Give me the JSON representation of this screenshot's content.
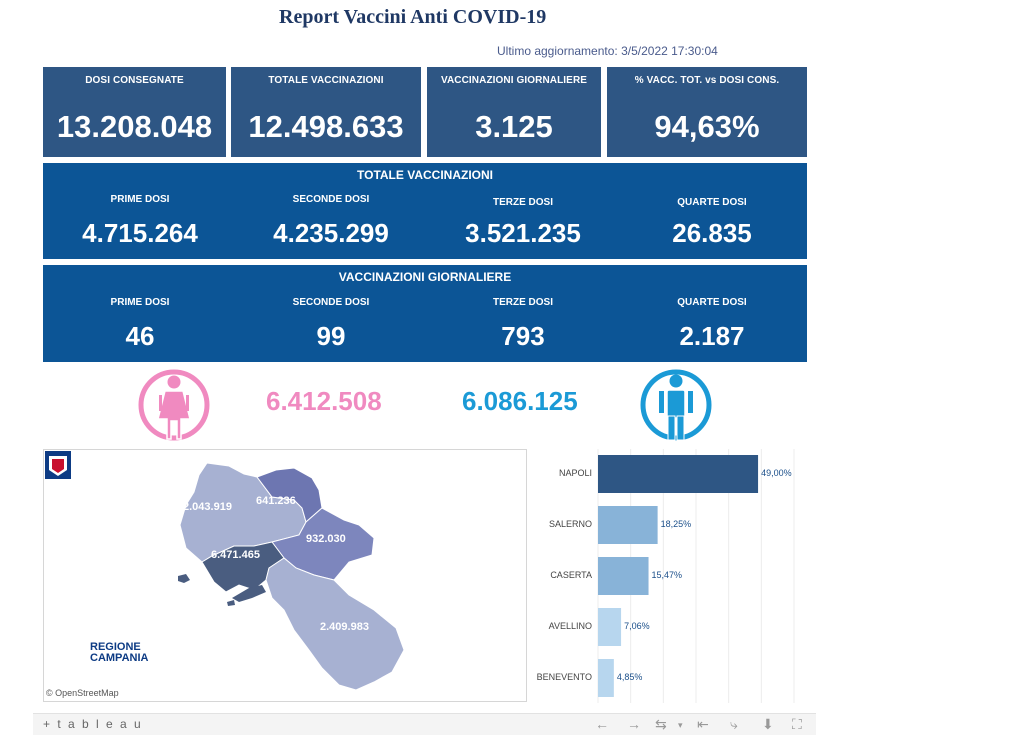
{
  "header": {
    "title": "Report Vaccini Anti COVID-19",
    "updated_label": "Ultimo aggiornamento:",
    "updated_value": "3/5/2022 17:30:04"
  },
  "kpis": [
    {
      "label": "DOSI  CONSEGNATE",
      "value": "13.208.048"
    },
    {
      "label": "TOTALE VACCINAZIONI",
      "value": "12.498.633"
    },
    {
      "label": "VACCINAZIONI GIORNALIERE",
      "value": "3.125"
    },
    {
      "label": "% VACC. TOT. vs DOSI CONS.",
      "value": "94,63%"
    }
  ],
  "totale": {
    "title": "TOTALE VACCINAZIONI",
    "items": [
      {
        "label": "PRIME DOSI",
        "value": "4.715.264"
      },
      {
        "label": "SECONDE DOSI",
        "value": "4.235.299"
      },
      {
        "label": "TERZE DOSI",
        "value": "3.521.235"
      },
      {
        "label": "QUARTE DOSI",
        "value": "26.835"
      }
    ]
  },
  "giornaliere": {
    "title": "VACCINAZIONI GIORNALIERE",
    "items": [
      {
        "label": "PRIME DOSI",
        "value": "46"
      },
      {
        "label": "SECONDE DOSI",
        "value": "99"
      },
      {
        "label": "TERZE DOSI",
        "value": "793"
      },
      {
        "label": "QUARTE DOSI",
        "value": "2.187"
      }
    ]
  },
  "gender": {
    "female_value": "6.412.508",
    "male_value": "6.086.125",
    "female_color": "#f08ac0",
    "male_color": "#1b9ad6",
    "female_icon": "female-icon",
    "male_icon": "male-icon"
  },
  "map": {
    "labels": {
      "caserta": "2.043.919",
      "benevento": "641.236",
      "avellino": "932.030",
      "napoli": "6.471.465",
      "salerno": "2.409.983"
    },
    "attribution": "© OpenStreetMap",
    "logo_text_1": "REGIONE",
    "logo_text_2": "CAMPANIA"
  },
  "chart_data": {
    "type": "bar",
    "orientation": "horizontal",
    "categories": [
      "NAPOLI",
      "SALERNO",
      "CASERTA",
      "AVELLINO",
      "BENEVENTO"
    ],
    "values": [
      49.0,
      18.25,
      15.47,
      7.06,
      4.85
    ],
    "value_labels": [
      "49,00%",
      "18,25%",
      "15,47%",
      "7,06%",
      "4,85%"
    ],
    "colors": [
      "#2e5684",
      "#88b3d8",
      "#88b3d8",
      "#b7d6ee",
      "#b7d6ee"
    ],
    "xlim": [
      0,
      60
    ],
    "grid": true
  },
  "toolbar": {
    "brand": "+ t a b l e a u"
  }
}
